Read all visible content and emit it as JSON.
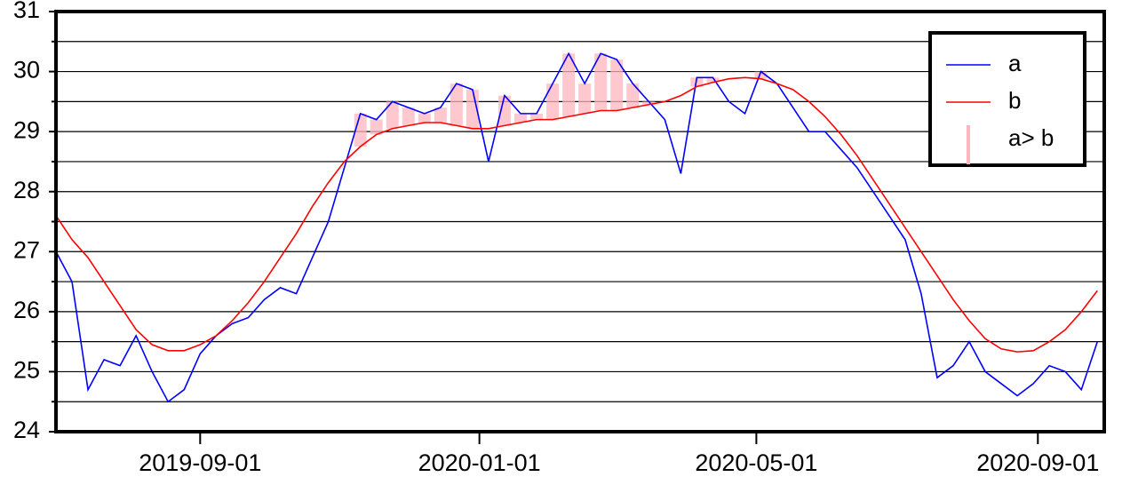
{
  "chart_data": {
    "type": "line",
    "x": [
      "2019-06-30",
      "2019-07-07",
      "2019-07-14",
      "2019-07-21",
      "2019-07-28",
      "2019-08-04",
      "2019-08-11",
      "2019-08-18",
      "2019-08-25",
      "2019-09-01",
      "2019-09-08",
      "2019-09-15",
      "2019-09-22",
      "2019-09-29",
      "2019-10-06",
      "2019-10-13",
      "2019-10-20",
      "2019-10-27",
      "2019-11-03",
      "2019-11-10",
      "2019-11-17",
      "2019-11-24",
      "2019-12-01",
      "2019-12-08",
      "2019-12-15",
      "2019-12-22",
      "2019-12-29",
      "2020-01-05",
      "2020-01-12",
      "2020-01-19",
      "2020-01-26",
      "2020-02-02",
      "2020-02-09",
      "2020-02-16",
      "2020-02-23",
      "2020-03-01",
      "2020-03-08",
      "2020-03-15",
      "2020-03-22",
      "2020-03-29",
      "2020-04-05",
      "2020-04-12",
      "2020-04-19",
      "2020-04-26",
      "2020-05-03",
      "2020-05-10",
      "2020-05-17",
      "2020-05-24",
      "2020-05-31",
      "2020-06-07",
      "2020-06-14",
      "2020-06-21",
      "2020-06-28",
      "2020-07-05",
      "2020-07-12",
      "2020-07-19",
      "2020-07-26",
      "2020-08-02",
      "2020-08-09",
      "2020-08-16",
      "2020-08-23",
      "2020-08-30",
      "2020-09-06",
      "2020-09-13",
      "2020-09-20",
      "2020-09-27"
    ],
    "series": [
      {
        "name": "a",
        "color": "#0000ff",
        "values": [
          27.0,
          26.5,
          24.7,
          25.2,
          25.1,
          25.6,
          25.0,
          24.5,
          24.7,
          25.3,
          25.6,
          25.8,
          25.9,
          26.2,
          26.4,
          26.3,
          26.9,
          27.5,
          28.4,
          29.3,
          29.2,
          29.5,
          29.4,
          29.3,
          29.4,
          29.8,
          29.7,
          28.5,
          29.6,
          29.3,
          29.3,
          29.8,
          30.3,
          29.8,
          30.3,
          30.2,
          29.8,
          29.5,
          29.2,
          28.3,
          29.9,
          29.9,
          29.5,
          29.3,
          30.0,
          29.8,
          29.4,
          29.0,
          29.0,
          28.7,
          28.4,
          28.0,
          27.6,
          27.2,
          26.3,
          24.9,
          25.1,
          25.5,
          25.0,
          24.8,
          24.6,
          24.8,
          25.1,
          25.0,
          24.7,
          25.5
        ]
      },
      {
        "name": "b",
        "color": "#ff0000",
        "values": [
          27.6,
          27.2,
          26.9,
          26.5,
          26.1,
          25.7,
          25.45,
          25.35,
          25.35,
          25.45,
          25.6,
          25.85,
          26.15,
          26.5,
          26.9,
          27.3,
          27.75,
          28.15,
          28.5,
          28.75,
          28.95,
          29.05,
          29.1,
          29.15,
          29.15,
          29.1,
          29.05,
          29.05,
          29.1,
          29.15,
          29.2,
          29.2,
          29.25,
          29.3,
          29.35,
          29.35,
          29.4,
          29.45,
          29.5,
          29.6,
          29.75,
          29.82,
          29.88,
          29.9,
          29.88,
          29.8,
          29.7,
          29.5,
          29.25,
          28.95,
          28.6,
          28.2,
          27.8,
          27.4,
          27.0,
          26.6,
          26.2,
          25.85,
          25.55,
          25.38,
          25.33,
          25.35,
          25.5,
          25.7,
          26.0,
          26.35
        ]
      }
    ],
    "fill_label": "a> b",
    "fill_color": "#ffb6be",
    "xlim": [
      "2019-06-30",
      "2020-09-30"
    ],
    "xticks": [
      "2019-09-01",
      "2020-01-01",
      "2020-05-01",
      "2020-09-01"
    ],
    "ylim": [
      24,
      31
    ],
    "yticks": [
      24,
      25,
      26,
      27,
      28,
      29,
      30,
      31
    ],
    "yminor": [
      24.5,
      25.5,
      26.5,
      27.5,
      28.5,
      29.5,
      30.5
    ],
    "grid": true,
    "legend": "upper right"
  }
}
